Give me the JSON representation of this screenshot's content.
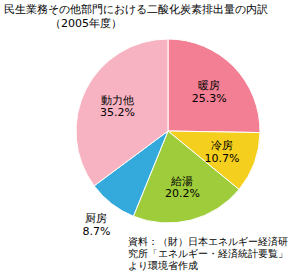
{
  "chart_data": {
    "type": "pie",
    "title": "民生業務その他部門における二酸化炭素排出量の内訳",
    "subtitle": "（2005年度）",
    "categories": [
      "暖房",
      "冷房",
      "給湯",
      "厨房",
      "動力他"
    ],
    "values": [
      25.3,
      10.7,
      20.2,
      8.7,
      35.2
    ],
    "value_labels": [
      "25.3%",
      "10.7%",
      "20.2%",
      "8.7%",
      "35.2%"
    ],
    "colors": [
      "#f27f93",
      "#f5cf1d",
      "#9fcc3b",
      "#34a9db",
      "#f7b3c2"
    ],
    "data_labels": true,
    "caption": "資料：（財）日本エネルギー経済研究所「エネルギー・経済統計要覧」より環境省作成"
  }
}
